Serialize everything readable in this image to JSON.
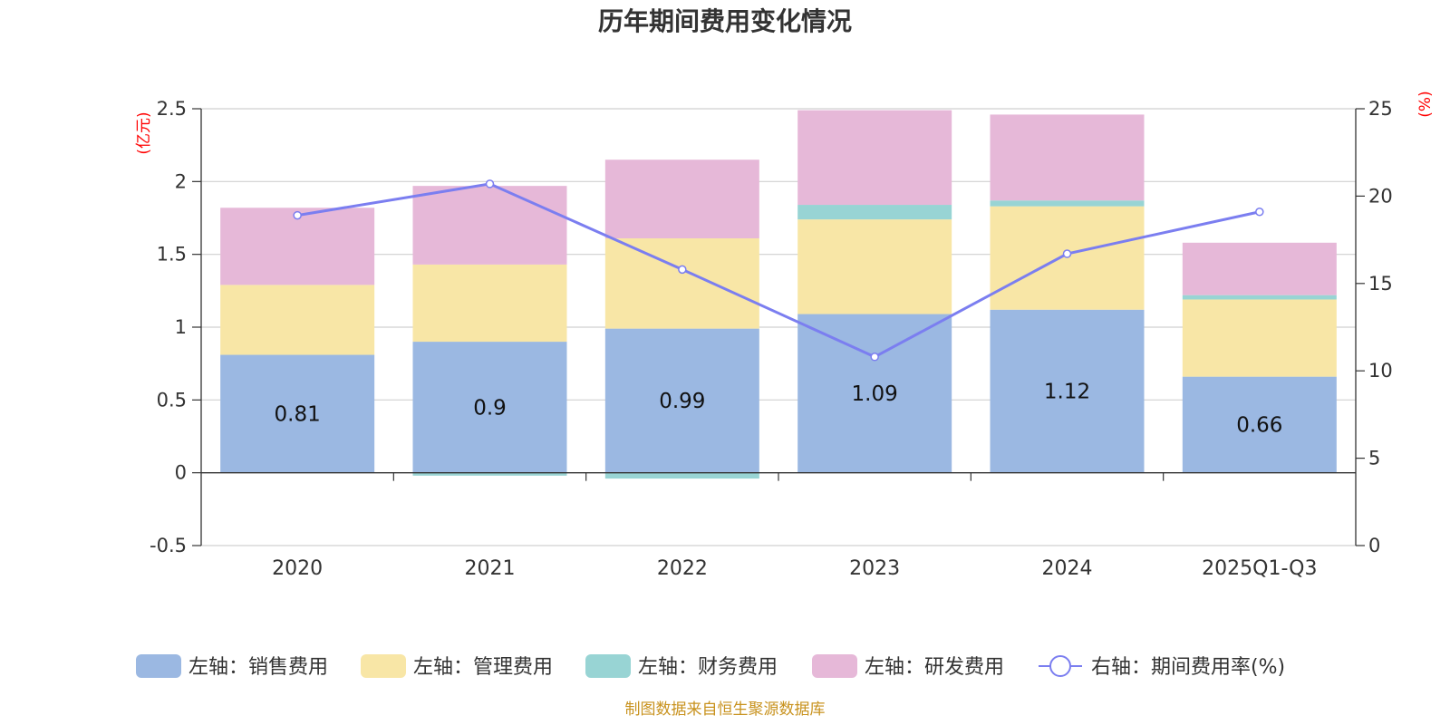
{
  "chart_data": {
    "type": "bar",
    "stacked": true,
    "title": "历年期间费用变化情况",
    "categories": [
      "2020",
      "2021",
      "2022",
      "2023",
      "2024",
      "2025Q1-Q3"
    ],
    "left_axis": {
      "unit": "(亿元)",
      "ylim": [
        -0.5,
        2.5
      ],
      "ticks": [
        "-0.5",
        "0",
        "0.5",
        "1",
        "1.5",
        "2",
        "2.5"
      ]
    },
    "right_axis": {
      "unit": "(%)",
      "ylim": [
        0,
        25
      ],
      "ticks": [
        "0",
        "5",
        "10",
        "15",
        "20",
        "25"
      ]
    },
    "series": [
      {
        "name": "左轴：销售费用",
        "axis": "left",
        "color": "#9bb8e2",
        "values": [
          0.81,
          0.9,
          0.99,
          1.09,
          1.12,
          0.66
        ],
        "labels": [
          "0.81",
          "0.9",
          "0.99",
          "1.09",
          "1.12",
          "0.66"
        ]
      },
      {
        "name": "左轴：管理费用",
        "axis": "left",
        "color": "#f8e6a6",
        "values": [
          0.48,
          0.53,
          0.62,
          0.65,
          0.71,
          0.53
        ]
      },
      {
        "name": "左轴：财务费用",
        "axis": "left",
        "color": "#98d4d4",
        "values": [
          0.0,
          -0.02,
          -0.04,
          0.1,
          0.04,
          0.03
        ]
      },
      {
        "name": "左轴：研发费用",
        "axis": "left",
        "color": "#e6b8d8",
        "values": [
          0.53,
          0.54,
          0.54,
          0.65,
          0.59,
          0.36
        ]
      },
      {
        "name": "右轴：期间费用率(%)",
        "axis": "right",
        "type": "line",
        "color": "#7b7ef0",
        "values": [
          18.9,
          20.7,
          15.8,
          10.8,
          16.7,
          19.1
        ]
      }
    ],
    "legend_position": "bottom",
    "grid": true
  },
  "source_text": "制图数据来自恒生聚源数据库",
  "source_color": "#c8921e"
}
